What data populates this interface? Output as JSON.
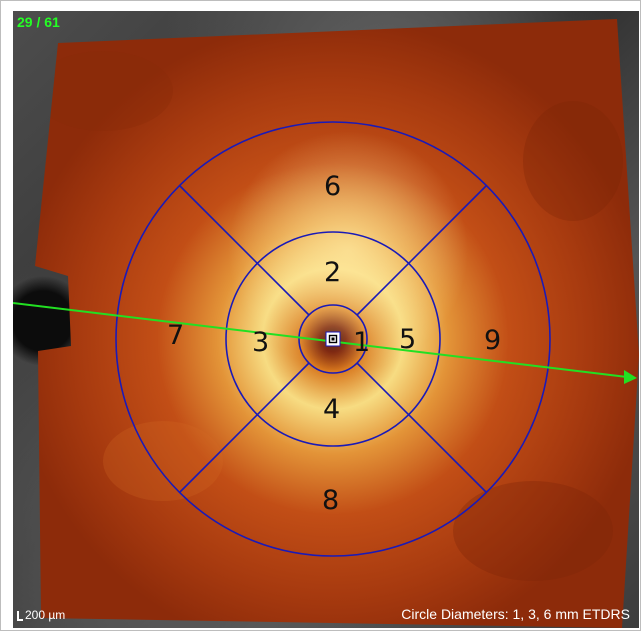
{
  "viewer": {
    "slice_counter": "29 / 61",
    "scale_label": "200 µm",
    "circle_caption": "Circle Diameters: 1, 3, 6 mm ETDRS"
  },
  "etdrs_grid": {
    "sectors": [
      {
        "id": "1",
        "label": "1"
      },
      {
        "id": "2",
        "label": "2"
      },
      {
        "id": "3",
        "label": "3"
      },
      {
        "id": "4",
        "label": "4"
      },
      {
        "id": "5",
        "label": "5"
      },
      {
        "id": "6",
        "label": "6"
      },
      {
        "id": "7",
        "label": "7"
      },
      {
        "id": "8",
        "label": "8"
      },
      {
        "id": "9",
        "label": "9"
      }
    ],
    "grid_color": "#1a1ab8"
  },
  "scan_line": {
    "color": "#22e022"
  },
  "icons": {
    "fovea_marker": "fovea-center-icon",
    "scale_bar": "scale-bar-icon",
    "scan_arrow": "scan-direction-arrow-icon"
  }
}
